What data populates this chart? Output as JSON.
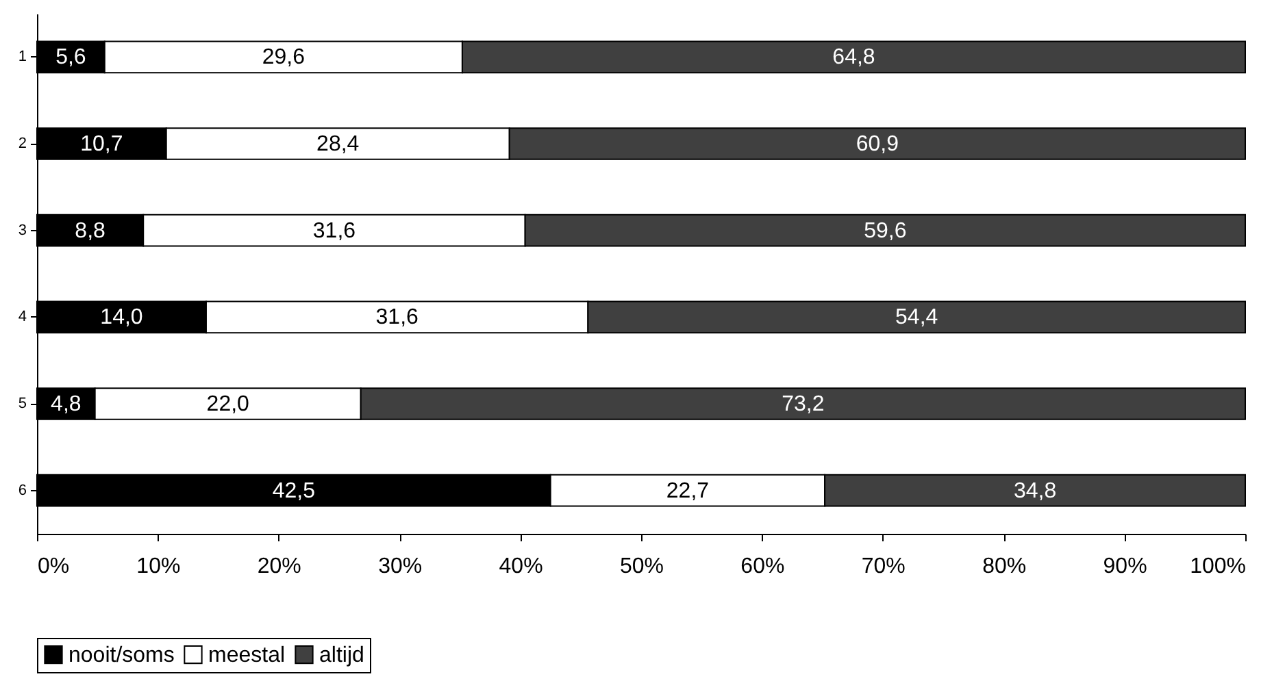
{
  "chart_data": {
    "type": "bar",
    "orientation": "horizontal",
    "stacked": true,
    "categories": [
      "1",
      "2",
      "3",
      "4",
      "5",
      "6"
    ],
    "series": [
      {
        "name": "nooit/soms",
        "color": "#000000",
        "values": [
          5.6,
          10.7,
          8.8,
          14.0,
          4.8,
          42.5
        ],
        "value_labels": [
          "5,6",
          "10,7",
          "8,8",
          "14,0",
          "4,8",
          "42,5"
        ]
      },
      {
        "name": "meestal",
        "color": "#ffffff",
        "values": [
          29.6,
          28.4,
          31.6,
          31.6,
          22.0,
          22.7
        ],
        "value_labels": [
          "29,6",
          "28,4",
          "31,6",
          "31,6",
          "22,0",
          "22,7"
        ]
      },
      {
        "name": "altijd",
        "color": "#404040",
        "values": [
          64.8,
          60.9,
          59.6,
          54.4,
          73.2,
          34.8
        ],
        "value_labels": [
          "64,8",
          "60,9",
          "59,6",
          "54,4",
          "73,2",
          "34,8"
        ]
      }
    ],
    "xlim": [
      0,
      100
    ],
    "xticks": [
      {
        "value": 0,
        "label": "0%"
      },
      {
        "value": 10,
        "label": "10%"
      },
      {
        "value": 20,
        "label": "20%"
      },
      {
        "value": 30,
        "label": "30%"
      },
      {
        "value": 40,
        "label": "40%"
      },
      {
        "value": 50,
        "label": "50%"
      },
      {
        "value": 60,
        "label": "60%"
      },
      {
        "value": 70,
        "label": "70%"
      },
      {
        "value": 80,
        "label": "80%"
      },
      {
        "value": 90,
        "label": "90%"
      },
      {
        "value": 100,
        "label": "100%"
      }
    ],
    "legend": "bottom",
    "grid": false
  }
}
